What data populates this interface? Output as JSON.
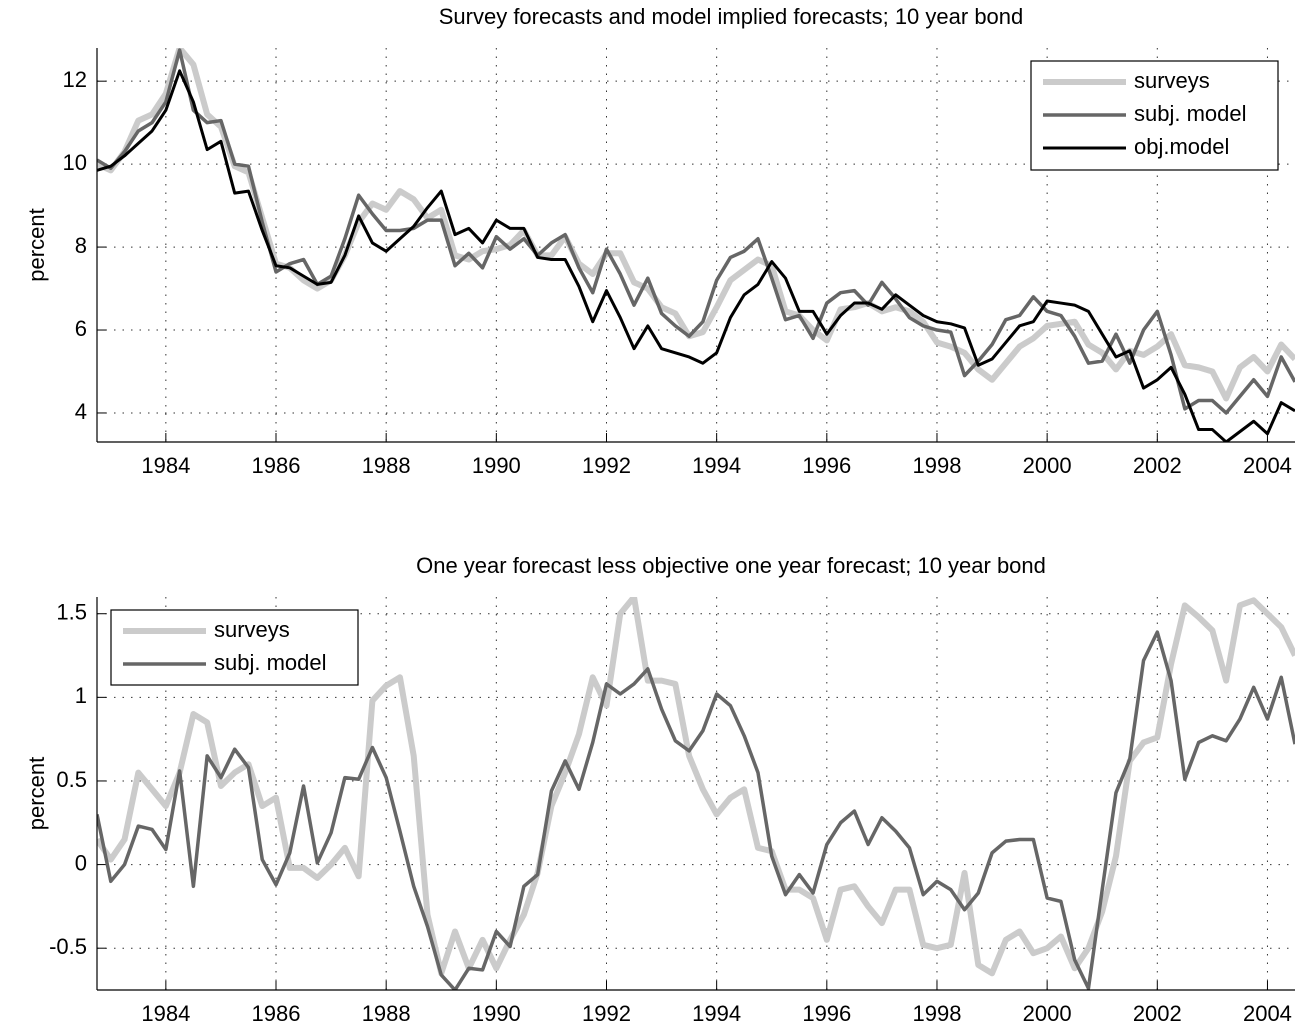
{
  "chart_data": [
    {
      "type": "line",
      "title": "Survey forecasts and model implied forecasts; 10 year bond",
      "y_label": "percent",
      "x": [
        1982.75,
        1983,
        1983.25,
        1983.5,
        1983.75,
        1984,
        1984.25,
        1984.5,
        1984.75,
        1985,
        1985.25,
        1985.5,
        1985.75,
        1986,
        1986.25,
        1986.5,
        1986.75,
        1987,
        1987.25,
        1987.5,
        1987.75,
        1988,
        1988.25,
        1988.5,
        1988.75,
        1989,
        1989.25,
        1989.5,
        1989.75,
        1990,
        1990.25,
        1990.5,
        1990.75,
        1991,
        1991.25,
        1991.5,
        1991.75,
        1992,
        1992.25,
        1992.5,
        1992.75,
        1993,
        1993.25,
        1993.5,
        1993.75,
        1994,
        1994.25,
        1994.5,
        1994.75,
        1995,
        1995.25,
        1995.5,
        1995.75,
        1996,
        1996.25,
        1996.5,
        1996.75,
        1997,
        1997.25,
        1997.5,
        1997.75,
        1998,
        1998.25,
        1998.5,
        1998.75,
        1999,
        1999.25,
        1999.5,
        1999.75,
        2000,
        2000.25,
        2000.5,
        2000.75,
        2001,
        2001.25,
        2001.5,
        2001.75,
        2002,
        2002.25,
        2002.5,
        2002.75,
        2003,
        2003.25,
        2003.5,
        2003.75,
        2004,
        2004.25,
        2004.5
      ],
      "series": [
        {
          "name": "surveys",
          "color": "#cbcbcb",
          "width": 6,
          "values": [
            10.0,
            9.85,
            10.3,
            11.05,
            11.2,
            11.7,
            12.8,
            12.4,
            11.2,
            10.9,
            9.95,
            9.8,
            8.7,
            7.6,
            7.5,
            7.2,
            7.0,
            7.2,
            7.8,
            8.6,
            9.05,
            8.9,
            9.35,
            9.15,
            8.7,
            8.9,
            7.8,
            7.7,
            7.9,
            7.95,
            8.05,
            8.4,
            7.8,
            7.8,
            8.25,
            7.6,
            7.35,
            7.85,
            7.85,
            7.15,
            7.0,
            6.55,
            6.4,
            5.85,
            5.95,
            6.55,
            7.2,
            7.45,
            7.7,
            7.55,
            6.45,
            6.35,
            6.0,
            5.75,
            6.5,
            6.55,
            6.65,
            6.45,
            6.55,
            6.45,
            6.2,
            5.7,
            5.6,
            5.45,
            5.05,
            4.8,
            5.2,
            5.6,
            5.8,
            6.1,
            6.15,
            6.2,
            5.65,
            5.45,
            5.05,
            5.5,
            5.4,
            5.6,
            5.9,
            5.15,
            5.1,
            5.0,
            4.35,
            5.1,
            5.35,
            5.0,
            5.65,
            5.3
          ]
        },
        {
          "name": "subj. model",
          "color": "#666666",
          "width": 3.5,
          "values": [
            10.1,
            9.9,
            10.3,
            10.8,
            11.0,
            11.5,
            12.75,
            11.3,
            11.0,
            11.05,
            10.0,
            9.95,
            8.6,
            7.4,
            7.6,
            7.7,
            7.1,
            7.3,
            8.2,
            9.25,
            8.8,
            8.4,
            8.4,
            8.45,
            8.65,
            8.65,
            7.55,
            7.85,
            7.5,
            8.25,
            7.95,
            8.2,
            7.8,
            8.1,
            8.3,
            7.5,
            6.9,
            7.95,
            7.35,
            6.6,
            7.25,
            6.4,
            6.1,
            5.85,
            6.2,
            7.2,
            7.75,
            7.9,
            8.2,
            7.25,
            6.25,
            6.35,
            5.8,
            6.65,
            6.9,
            6.95,
            6.6,
            7.15,
            6.75,
            6.3,
            6.1,
            6.0,
            5.95,
            4.9,
            5.25,
            5.65,
            6.25,
            6.35,
            6.8,
            6.45,
            6.35,
            5.85,
            5.2,
            5.25,
            5.9,
            5.2,
            6.0,
            6.45,
            5.4,
            4.1,
            4.3,
            4.3,
            4.0,
            4.4,
            4.8,
            4.4,
            5.35,
            4.75
          ]
        },
        {
          "name": "obj.model",
          "color": "#000000",
          "width": 3,
          "values": [
            9.85,
            9.95,
            10.2,
            10.5,
            10.8,
            11.3,
            12.25,
            11.5,
            10.35,
            10.55,
            9.3,
            9.35,
            8.4,
            7.55,
            7.5,
            7.3,
            7.1,
            7.15,
            7.8,
            8.75,
            8.1,
            7.9,
            8.2,
            8.5,
            8.95,
            9.35,
            8.3,
            8.45,
            8.1,
            8.65,
            8.45,
            8.45,
            7.75,
            7.7,
            7.7,
            7.05,
            6.2,
            6.95,
            6.3,
            5.55,
            6.1,
            5.55,
            5.45,
            5.35,
            5.2,
            5.45,
            6.3,
            6.85,
            7.1,
            7.65,
            7.25,
            6.45,
            6.45,
            5.9,
            6.35,
            6.65,
            6.65,
            6.5,
            6.85,
            6.6,
            6.35,
            6.2,
            6.15,
            6.05,
            5.15,
            5.3,
            5.7,
            6.1,
            6.2,
            6.7,
            6.65,
            6.6,
            6.45,
            5.9,
            5.35,
            5.5,
            4.6,
            4.8,
            5.1,
            4.45,
            3.6,
            3.6,
            3.3,
            3.55,
            3.8,
            3.5,
            4.25,
            4.05
          ]
        }
      ],
      "xlim": [
        1982.75,
        2004.5
      ],
      "xticks": [
        1984,
        1986,
        1988,
        1990,
        1992,
        1994,
        1996,
        1998,
        2000,
        2002,
        2004
      ],
      "ylim": [
        3.3,
        12.8
      ],
      "yticks": [
        4,
        6,
        8,
        10,
        12
      ],
      "grid": true,
      "legend": "upper right"
    },
    {
      "type": "line",
      "title": "One year forecast less objective one year forecast; 10 year bond",
      "y_label": "percent",
      "x": [
        1982.75,
        1983,
        1983.25,
        1983.5,
        1983.75,
        1984,
        1984.25,
        1984.5,
        1984.75,
        1985,
        1985.25,
        1985.5,
        1985.75,
        1986,
        1986.25,
        1986.5,
        1986.75,
        1987,
        1987.25,
        1987.5,
        1987.75,
        1988,
        1988.25,
        1988.5,
        1988.75,
        1989,
        1989.25,
        1989.5,
        1989.75,
        1990,
        1990.25,
        1990.5,
        1990.75,
        1991,
        1991.25,
        1991.5,
        1991.75,
        1992,
        1992.25,
        1992.5,
        1992.75,
        1993,
        1993.25,
        1993.5,
        1993.75,
        1994,
        1994.25,
        1994.5,
        1994.75,
        1995,
        1995.25,
        1995.5,
        1995.75,
        1996,
        1996.25,
        1996.5,
        1996.75,
        1997,
        1997.25,
        1997.5,
        1997.75,
        1998,
        1998.25,
        1998.5,
        1998.75,
        1999,
        1999.25,
        1999.5,
        1999.75,
        2000,
        2000.25,
        2000.5,
        2000.75,
        2001,
        2001.25,
        2001.5,
        2001.75,
        2002,
        2002.25,
        2002.5,
        2002.75,
        2003,
        2003.25,
        2003.5,
        2003.75,
        2004,
        2004.25,
        2004.5
      ],
      "series": [
        {
          "name": "surveys",
          "color": "#cbcbcb",
          "width": 6,
          "values": [
            0.15,
            0.03,
            0.15,
            0.55,
            0.45,
            0.35,
            0.55,
            0.9,
            0.85,
            0.47,
            0.55,
            0.6,
            0.35,
            0.4,
            -0.02,
            -0.02,
            -0.08,
            0.0,
            0.1,
            -0.07,
            0.98,
            1.07,
            1.12,
            0.65,
            -0.3,
            -0.65,
            -0.4,
            -0.62,
            -0.45,
            -0.62,
            -0.45,
            -0.3,
            -0.05,
            0.35,
            0.55,
            0.78,
            1.12,
            0.95,
            1.5,
            1.6,
            1.1,
            1.1,
            1.08,
            0.65,
            0.45,
            0.3,
            0.4,
            0.45,
            0.1,
            0.08,
            -0.15,
            -0.15,
            -0.2,
            -0.45,
            -0.15,
            -0.13,
            -0.25,
            -0.35,
            -0.15,
            -0.15,
            -0.48,
            -0.5,
            -0.48,
            -0.05,
            -0.6,
            -0.65,
            -0.45,
            -0.4,
            -0.53,
            -0.5,
            -0.43,
            -0.62,
            -0.5,
            -0.28,
            0.05,
            0.62,
            0.73,
            0.76,
            1.2,
            1.55,
            1.48,
            1.4,
            1.1,
            1.55,
            1.58,
            1.5,
            1.42,
            1.25
          ]
        },
        {
          "name": "subj. model",
          "color": "#666666",
          "width": 3.5,
          "values": [
            0.3,
            -0.1,
            0.0,
            0.23,
            0.21,
            0.09,
            0.56,
            -0.13,
            0.65,
            0.52,
            0.69,
            0.58,
            0.03,
            -0.12,
            0.07,
            0.47,
            0.01,
            0.19,
            0.52,
            0.51,
            0.7,
            0.52,
            0.2,
            -0.13,
            -0.37,
            -0.66,
            -0.75,
            -0.62,
            -0.63,
            -0.4,
            -0.49,
            -0.13,
            -0.06,
            0.44,
            0.62,
            0.45,
            0.73,
            1.08,
            1.02,
            1.08,
            1.17,
            0.93,
            0.74,
            0.68,
            0.8,
            1.02,
            0.95,
            0.77,
            0.55,
            0.05,
            -0.18,
            -0.06,
            -0.17,
            0.12,
            0.25,
            0.32,
            0.12,
            0.28,
            0.2,
            0.1,
            -0.18,
            -0.1,
            -0.15,
            -0.27,
            -0.17,
            0.07,
            0.14,
            0.15,
            0.15,
            -0.2,
            -0.22,
            -0.57,
            -0.74,
            -0.15,
            0.43,
            0.63,
            1.22,
            1.39,
            1.1,
            0.51,
            0.73,
            0.77,
            0.74,
            0.87,
            1.06,
            0.87,
            1.12,
            0.72
          ]
        }
      ],
      "xlim": [
        1982.75,
        2004.5
      ],
      "xticks": [
        1984,
        1986,
        1988,
        1990,
        1992,
        1994,
        1996,
        1998,
        2000,
        2002,
        2004
      ],
      "ylim": [
        -0.75,
        1.6
      ],
      "yticks": [
        -0.5,
        0,
        0.5,
        1,
        1.5
      ],
      "grid": true,
      "legend": "upper left"
    }
  ]
}
